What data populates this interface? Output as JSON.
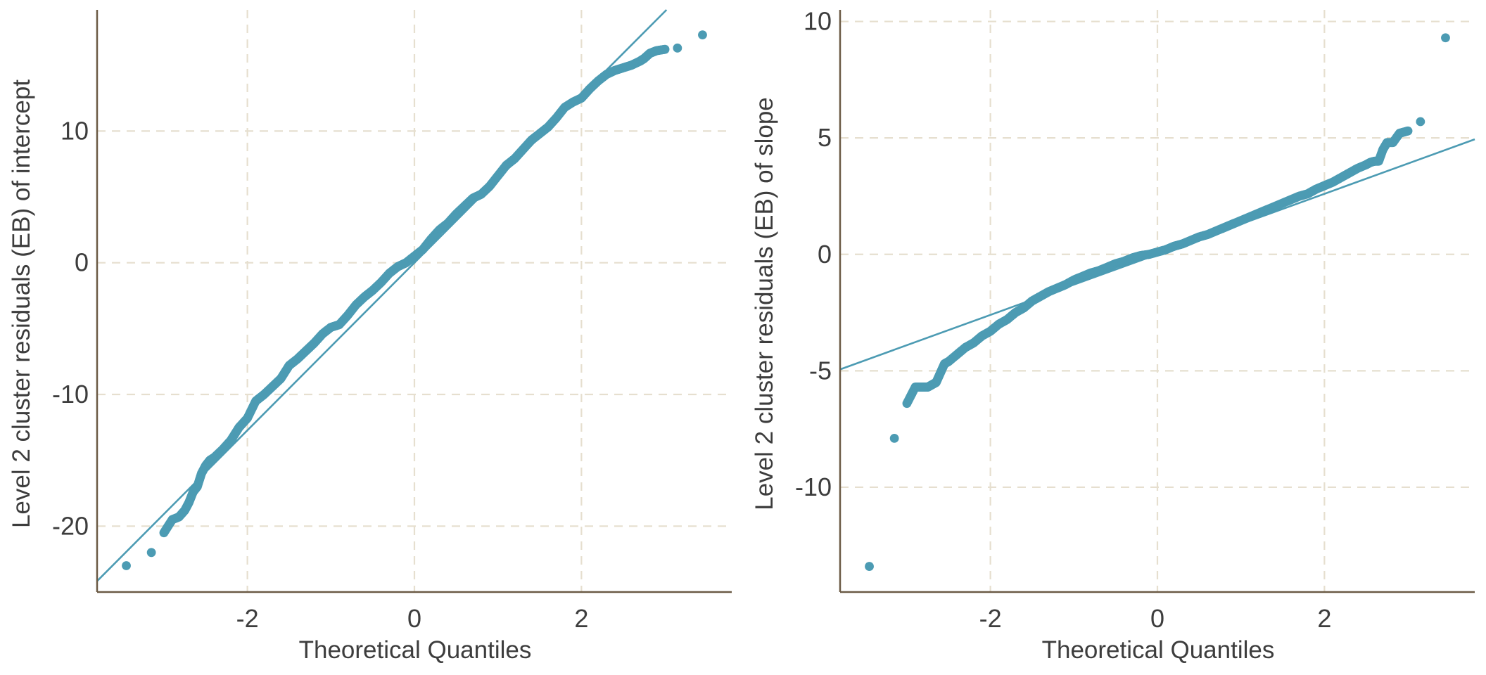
{
  "colors": {
    "series": "#4c9bb3",
    "spine": "#6b5a45",
    "grid": "#e6dfcf",
    "text": "#3d3d3d",
    "background": "#ffffff"
  },
  "chart_data": [
    {
      "type": "scatter",
      "subtype": "qq-plot",
      "title": "",
      "xlabel": "Theoretical Quantiles",
      "ylabel": "Level 2 cluster  residuals (EB) of intercept",
      "xlim": [
        -3.8,
        3.8
      ],
      "ylim": [
        -25,
        19.2
      ],
      "xticks": [
        -2,
        0,
        2
      ],
      "xtick_labels": [
        "-2",
        "0",
        "2"
      ],
      "yticks": [
        -20,
        -10,
        0,
        10
      ],
      "ytick_labels": [
        "-20",
        "-10",
        "0",
        "10"
      ],
      "grid": true,
      "reference_line": {
        "slope": 6.36,
        "intercept": 0.0
      },
      "sample_quantiles_by_theoretical_quantile": {
        "x": [
          -3.45,
          -3.15,
          -3.0,
          -2.9,
          -2.82,
          -2.75,
          -2.7,
          -2.65,
          -2.6,
          -2.55,
          -2.5,
          -2.45,
          -2.4,
          -2.3,
          -2.2,
          -2.1,
          -2.0,
          -1.9,
          -1.8,
          -1.7,
          -1.6,
          -1.5,
          -1.4,
          -1.3,
          -1.2,
          -1.1,
          -1.0,
          -0.9,
          -0.8,
          -0.7,
          -0.6,
          -0.5,
          -0.4,
          -0.3,
          -0.2,
          -0.1,
          0.0,
          0.1,
          0.2,
          0.3,
          0.4,
          0.5,
          0.6,
          0.7,
          0.8,
          0.9,
          1.0,
          1.1,
          1.2,
          1.3,
          1.4,
          1.5,
          1.6,
          1.7,
          1.8,
          1.9,
          2.0,
          2.1,
          2.2,
          2.3,
          2.4,
          2.5,
          2.6,
          2.7,
          2.75,
          2.82,
          2.9,
          3.0,
          3.15,
          3.45
        ],
        "y": [
          -23.0,
          -22.0,
          -20.5,
          -19.5,
          -19.3,
          -18.8,
          -18.2,
          -17.4,
          -17.0,
          -16.0,
          -15.4,
          -15.0,
          -14.8,
          -14.2,
          -13.5,
          -12.5,
          -11.8,
          -10.5,
          -10.0,
          -9.4,
          -8.8,
          -7.8,
          -7.3,
          -6.7,
          -6.1,
          -5.4,
          -4.9,
          -4.7,
          -4.0,
          -3.2,
          -2.6,
          -2.1,
          -1.5,
          -0.8,
          -0.3,
          0.0,
          0.5,
          1.0,
          1.8,
          2.5,
          3.0,
          3.7,
          4.3,
          4.9,
          5.2,
          5.8,
          6.6,
          7.4,
          7.9,
          8.6,
          9.3,
          9.8,
          10.3,
          11.0,
          11.8,
          12.2,
          12.5,
          13.2,
          13.8,
          14.3,
          14.6,
          14.8,
          15.0,
          15.3,
          15.5,
          15.9,
          16.1,
          16.2,
          16.3,
          17.3
        ]
      }
    },
    {
      "type": "scatter",
      "subtype": "qq-plot",
      "title": "",
      "xlabel": "Theoretical Quantiles",
      "ylabel": "Level 2 cluster  residuals (EB) of slope",
      "xlim": [
        -3.8,
        3.8
      ],
      "ylim": [
        -14.5,
        10.5
      ],
      "xticks": [
        -2,
        0,
        2
      ],
      "xtick_labels": [
        "-2",
        "0",
        "2"
      ],
      "yticks": [
        -10,
        -5,
        0,
        5,
        10
      ],
      "ytick_labels": [
        "-10",
        "-5",
        "0",
        "5",
        "10"
      ],
      "grid": true,
      "reference_line": {
        "slope": 1.3,
        "intercept": 0.0
      },
      "sample_quantiles_by_theoretical_quantile": {
        "x": [
          -3.45,
          -3.15,
          -3.0,
          -2.9,
          -2.82,
          -2.75,
          -2.7,
          -2.65,
          -2.6,
          -2.55,
          -2.5,
          -2.4,
          -2.3,
          -2.2,
          -2.1,
          -2.0,
          -1.9,
          -1.8,
          -1.7,
          -1.6,
          -1.5,
          -1.4,
          -1.3,
          -1.2,
          -1.1,
          -1.0,
          -0.9,
          -0.8,
          -0.7,
          -0.6,
          -0.5,
          -0.4,
          -0.3,
          -0.2,
          -0.1,
          0.0,
          0.1,
          0.2,
          0.3,
          0.4,
          0.5,
          0.6,
          0.7,
          0.8,
          0.9,
          1.0,
          1.1,
          1.2,
          1.3,
          1.4,
          1.5,
          1.6,
          1.7,
          1.8,
          1.9,
          2.0,
          2.1,
          2.2,
          2.3,
          2.4,
          2.5,
          2.55,
          2.6,
          2.65,
          2.7,
          2.75,
          2.82,
          2.9,
          3.0,
          3.15,
          3.45
        ],
        "y": [
          -13.4,
          -7.9,
          -6.4,
          -5.7,
          -5.7,
          -5.7,
          -5.6,
          -5.5,
          -5.1,
          -4.7,
          -4.6,
          -4.3,
          -4.0,
          -3.8,
          -3.5,
          -3.3,
          -3.0,
          -2.8,
          -2.5,
          -2.3,
          -2.0,
          -1.8,
          -1.6,
          -1.45,
          -1.3,
          -1.1,
          -0.95,
          -0.8,
          -0.7,
          -0.55,
          -0.4,
          -0.3,
          -0.15,
          -0.05,
          0.0,
          0.1,
          0.2,
          0.35,
          0.45,
          0.6,
          0.75,
          0.85,
          1.0,
          1.15,
          1.3,
          1.45,
          1.6,
          1.75,
          1.9,
          2.05,
          2.2,
          2.35,
          2.5,
          2.6,
          2.8,
          2.95,
          3.1,
          3.3,
          3.5,
          3.7,
          3.85,
          3.95,
          4.0,
          4.0,
          4.5,
          4.8,
          4.8,
          5.2,
          5.3,
          5.7,
          9.3
        ]
      }
    }
  ]
}
